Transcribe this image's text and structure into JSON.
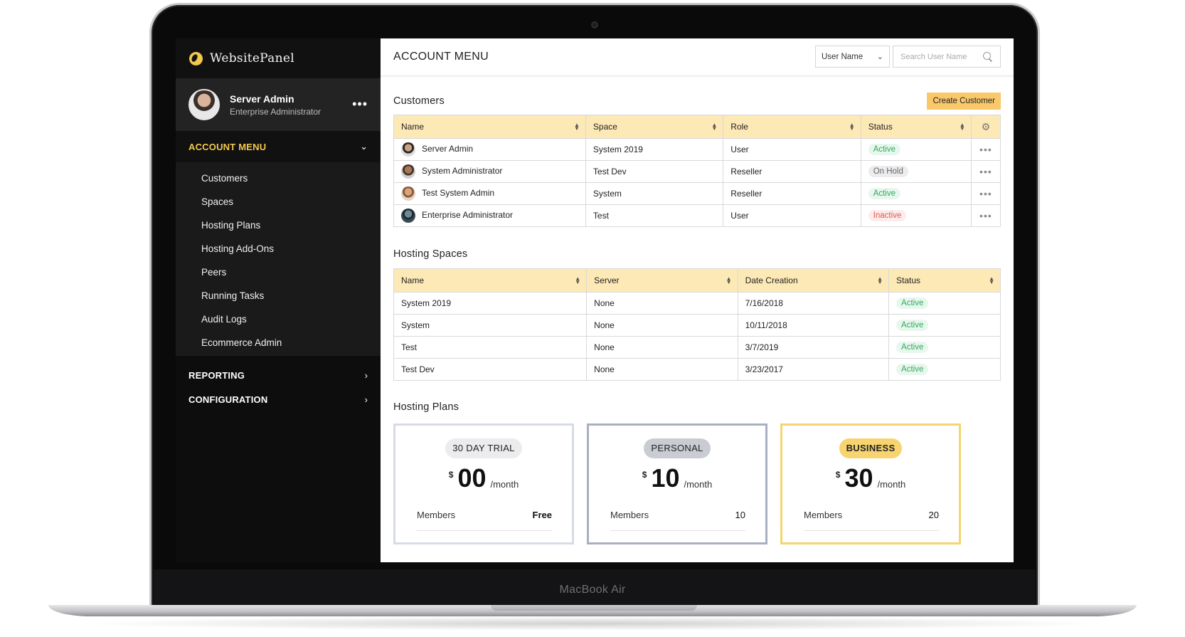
{
  "device": {
    "label": "MacBook Air"
  },
  "sidebar": {
    "brand": "WebsitePanel",
    "profile": {
      "name": "Server Admin",
      "role": "Enterprise Administrator"
    },
    "account_menu": {
      "label": "ACCOUNT MENU",
      "items": [
        "Customers",
        "Spaces",
        "Hosting Plans",
        "Hosting Add-Ons",
        "Peers",
        "Running Tasks",
        "Audit Logs",
        "Ecommerce Admin"
      ]
    },
    "sections": [
      "REPORTING",
      "CONFIGURATION"
    ]
  },
  "topbar": {
    "title": "ACCOUNT MENU",
    "filter_select": "User Name",
    "search_placeholder": "Search User Name"
  },
  "customers": {
    "title": "Customers",
    "create_button": "Create Customer",
    "columns": [
      "Name",
      "Space",
      "Role",
      "Status"
    ],
    "rows": [
      {
        "name": "Server Admin",
        "space": "System 2019",
        "role": "User",
        "status": "Active"
      },
      {
        "name": "System Administrator",
        "space": "Test Dev",
        "role": "Reseller",
        "status": "On Hold"
      },
      {
        "name": "Test System Admin",
        "space": "System",
        "role": "Reseller",
        "status": "Active"
      },
      {
        "name": "Enterprise Administrator",
        "space": "Test",
        "role": "User",
        "status": "Inactive"
      }
    ]
  },
  "hosting_spaces": {
    "title": "Hosting Spaces",
    "columns": [
      "Name",
      "Server",
      "Date Creation",
      "Status"
    ],
    "rows": [
      {
        "name": "System 2019",
        "server": "None",
        "date": "7/16/2018",
        "status": "Active"
      },
      {
        "name": "System",
        "server": "None",
        "date": "10/11/2018",
        "status": "Active"
      },
      {
        "name": "Test",
        "server": "None",
        "date": "3/7/2019",
        "status": "Active"
      },
      {
        "name": "Test Dev",
        "server": "None",
        "date": "3/23/2017",
        "status": "Active"
      }
    ]
  },
  "hosting_plans": {
    "title": "Hosting Plans",
    "plans": [
      {
        "name": "30 DAY TRIAL",
        "currency": "$",
        "price": "00",
        "period": "/month",
        "members_label": "Members",
        "members_value": "Free"
      },
      {
        "name": "PERSONAL",
        "currency": "$",
        "price": "10",
        "period": "/month",
        "members_label": "Members",
        "members_value": "10"
      },
      {
        "name": "BUSINESS",
        "currency": "$",
        "price": "30",
        "period": "/month",
        "members_label": "Members",
        "members_value": "20"
      }
    ]
  },
  "colors": {
    "accent": "#f9c86a",
    "sidebar": "#1a1a1a",
    "active": "#2eaa5b",
    "inactive": "#e2574c",
    "table_header": "#fde9b6"
  },
  "icons": {
    "settings": "gear-icon",
    "search": "search-icon",
    "more": "more-dots-icon",
    "expand": "chevron-down-icon",
    "collapse": "chevron-right-icon"
  }
}
